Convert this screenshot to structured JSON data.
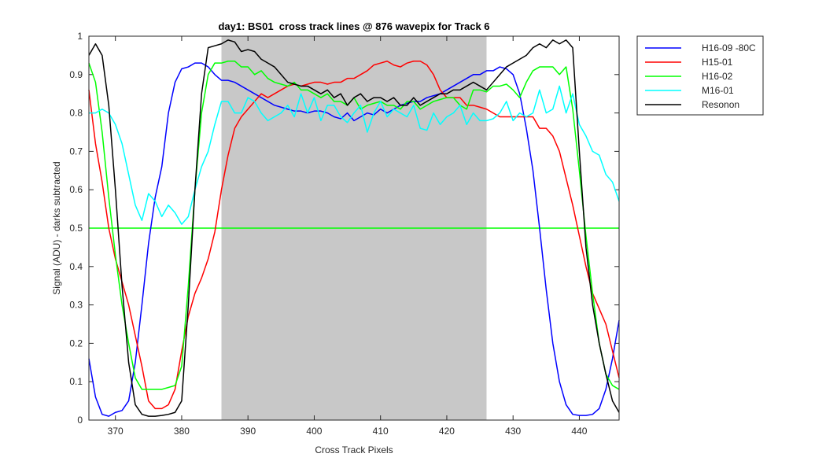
{
  "chart_data": {
    "type": "line",
    "title": "day1: BS01  cross track lines @ 876 wavepix for Track 6",
    "x_label": "Cross Track Pixels",
    "y_label": "Signal (ADU) - darks subtracted",
    "xlim": [
      366,
      446
    ],
    "ylim": [
      0,
      1
    ],
    "xticks": [
      370,
      380,
      390,
      400,
      410,
      420,
      430,
      440
    ],
    "yticks": [
      0,
      0.1,
      0.2,
      0.3,
      0.4,
      0.5,
      0.6,
      0.7,
      0.8,
      0.9,
      1
    ],
    "legend": "outside-top-right",
    "shaded_region": {
      "x": [
        386,
        426
      ],
      "color": "#c8c8c8"
    },
    "hline": {
      "y": 0.5,
      "color": "#00ff00"
    },
    "x": [
      366,
      367,
      368,
      369,
      370,
      371,
      372,
      373,
      374,
      375,
      376,
      377,
      378,
      379,
      380,
      381,
      382,
      383,
      384,
      385,
      386,
      387,
      388,
      389,
      390,
      391,
      392,
      393,
      394,
      395,
      396,
      397,
      398,
      399,
      400,
      401,
      402,
      403,
      404,
      405,
      406,
      407,
      408,
      409,
      410,
      411,
      412,
      413,
      414,
      415,
      416,
      417,
      418,
      419,
      420,
      421,
      422,
      423,
      424,
      425,
      426,
      427,
      428,
      429,
      430,
      431,
      432,
      433,
      434,
      435,
      436,
      437,
      438,
      439,
      440,
      441,
      442,
      443,
      444,
      445,
      446
    ],
    "series": [
      {
        "name": "H16-09 -80C",
        "color": "#0000ff",
        "values": [
          0.16,
          0.06,
          0.015,
          0.01,
          0.02,
          0.025,
          0.05,
          0.15,
          0.3,
          0.46,
          0.58,
          0.66,
          0.8,
          0.88,
          0.915,
          0.92,
          0.93,
          0.93,
          0.92,
          0.9,
          0.885,
          0.885,
          0.88,
          0.87,
          0.86,
          0.85,
          0.84,
          0.83,
          0.82,
          0.815,
          0.81,
          0.805,
          0.805,
          0.8,
          0.805,
          0.805,
          0.8,
          0.79,
          0.785,
          0.8,
          0.78,
          0.79,
          0.8,
          0.795,
          0.81,
          0.8,
          0.81,
          0.82,
          0.825,
          0.83,
          0.83,
          0.84,
          0.845,
          0.85,
          0.86,
          0.87,
          0.88,
          0.89,
          0.9,
          0.9,
          0.91,
          0.91,
          0.92,
          0.915,
          0.9,
          0.85,
          0.76,
          0.65,
          0.5,
          0.34,
          0.2,
          0.1,
          0.04,
          0.015,
          0.012,
          0.012,
          0.015,
          0.03,
          0.08,
          0.16,
          0.26
        ]
      },
      {
        "name": "H15-01",
        "color": "#ff0000",
        "values": [
          0.86,
          0.72,
          0.62,
          0.5,
          0.42,
          0.36,
          0.3,
          0.22,
          0.14,
          0.05,
          0.03,
          0.03,
          0.04,
          0.08,
          0.18,
          0.27,
          0.33,
          0.37,
          0.42,
          0.49,
          0.6,
          0.69,
          0.76,
          0.79,
          0.81,
          0.83,
          0.85,
          0.84,
          0.85,
          0.86,
          0.87,
          0.875,
          0.87,
          0.875,
          0.88,
          0.88,
          0.875,
          0.88,
          0.88,
          0.89,
          0.89,
          0.9,
          0.91,
          0.925,
          0.93,
          0.935,
          0.925,
          0.92,
          0.93,
          0.935,
          0.935,
          0.925,
          0.9,
          0.86,
          0.84,
          0.84,
          0.84,
          0.82,
          0.82,
          0.815,
          0.81,
          0.8,
          0.79,
          0.79,
          0.79,
          0.79,
          0.79,
          0.79,
          0.76,
          0.76,
          0.74,
          0.7,
          0.63,
          0.56,
          0.48,
          0.4,
          0.33,
          0.29,
          0.25,
          0.18,
          0.11
        ]
      },
      {
        "name": "H16-02",
        "color": "#00ff00",
        "values": [
          0.93,
          0.88,
          0.75,
          0.58,
          0.43,
          0.3,
          0.2,
          0.11,
          0.08,
          0.08,
          0.08,
          0.08,
          0.085,
          0.09,
          0.14,
          0.35,
          0.6,
          0.8,
          0.9,
          0.93,
          0.93,
          0.935,
          0.935,
          0.92,
          0.92,
          0.9,
          0.91,
          0.89,
          0.88,
          0.875,
          0.87,
          0.88,
          0.86,
          0.86,
          0.85,
          0.84,
          0.85,
          0.83,
          0.83,
          0.82,
          0.84,
          0.81,
          0.82,
          0.825,
          0.83,
          0.82,
          0.82,
          0.81,
          0.83,
          0.83,
          0.81,
          0.82,
          0.83,
          0.835,
          0.84,
          0.84,
          0.82,
          0.81,
          0.86,
          0.86,
          0.855,
          0.87,
          0.87,
          0.875,
          0.86,
          0.84,
          0.88,
          0.91,
          0.92,
          0.92,
          0.92,
          0.9,
          0.92,
          0.81,
          0.65,
          0.48,
          0.33,
          0.2,
          0.12,
          0.09,
          0.08
        ]
      },
      {
        "name": "M16-01",
        "color": "#00ffff",
        "values": [
          0.8,
          0.8,
          0.81,
          0.8,
          0.77,
          0.72,
          0.64,
          0.56,
          0.52,
          0.59,
          0.57,
          0.53,
          0.56,
          0.54,
          0.51,
          0.53,
          0.6,
          0.66,
          0.7,
          0.77,
          0.83,
          0.83,
          0.8,
          0.8,
          0.84,
          0.83,
          0.8,
          0.78,
          0.79,
          0.8,
          0.82,
          0.79,
          0.85,
          0.8,
          0.84,
          0.78,
          0.82,
          0.82,
          0.79,
          0.775,
          0.8,
          0.82,
          0.75,
          0.8,
          0.83,
          0.79,
          0.81,
          0.8,
          0.79,
          0.82,
          0.76,
          0.755,
          0.8,
          0.77,
          0.79,
          0.8,
          0.82,
          0.77,
          0.8,
          0.78,
          0.78,
          0.785,
          0.8,
          0.83,
          0.78,
          0.8,
          0.79,
          0.8,
          0.86,
          0.8,
          0.81,
          0.87,
          0.8,
          0.85,
          0.77,
          0.74,
          0.7,
          0.69,
          0.64,
          0.62,
          0.57
        ]
      },
      {
        "name": "Resonon",
        "color": "#000000",
        "values": [
          0.95,
          0.98,
          0.95,
          0.82,
          0.6,
          0.35,
          0.15,
          0.04,
          0.015,
          0.01,
          0.01,
          0.012,
          0.015,
          0.02,
          0.05,
          0.3,
          0.6,
          0.85,
          0.97,
          0.975,
          0.98,
          0.99,
          0.985,
          0.96,
          0.965,
          0.96,
          0.94,
          0.93,
          0.92,
          0.9,
          0.88,
          0.875,
          0.87,
          0.87,
          0.86,
          0.85,
          0.86,
          0.84,
          0.85,
          0.82,
          0.84,
          0.85,
          0.83,
          0.84,
          0.84,
          0.83,
          0.84,
          0.82,
          0.82,
          0.84,
          0.82,
          0.83,
          0.84,
          0.85,
          0.85,
          0.86,
          0.86,
          0.87,
          0.88,
          0.87,
          0.86,
          0.88,
          0.9,
          0.92,
          0.93,
          0.94,
          0.95,
          0.97,
          0.98,
          0.97,
          0.99,
          0.98,
          0.99,
          0.97,
          0.7,
          0.45,
          0.3,
          0.2,
          0.12,
          0.05,
          0.02
        ]
      }
    ]
  }
}
